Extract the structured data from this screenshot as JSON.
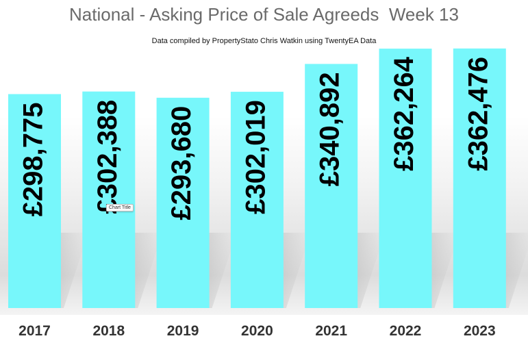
{
  "chart_data": {
    "type": "bar",
    "title": "National - Asking Price of Sale Agreeds  Week 13",
    "subtitle": "Data compiled by PropertyStato Chris Watkin using TwentyEA Data",
    "categories": [
      "2017",
      "2018",
      "2019",
      "2020",
      "2021",
      "2022",
      "2023"
    ],
    "values": [
      298775,
      302388,
      293680,
      302019,
      340892,
      362264,
      362476
    ],
    "data_labels": [
      "£298,775",
      "£302,388",
      "£293,680",
      "£302,019",
      "£340,892",
      "£362,264",
      "£362,476"
    ],
    "ylim": [
      0,
      380000
    ],
    "grid": false,
    "legend": "none",
    "bar_color": "#77f7fb"
  },
  "tooltip": "Chart Title"
}
